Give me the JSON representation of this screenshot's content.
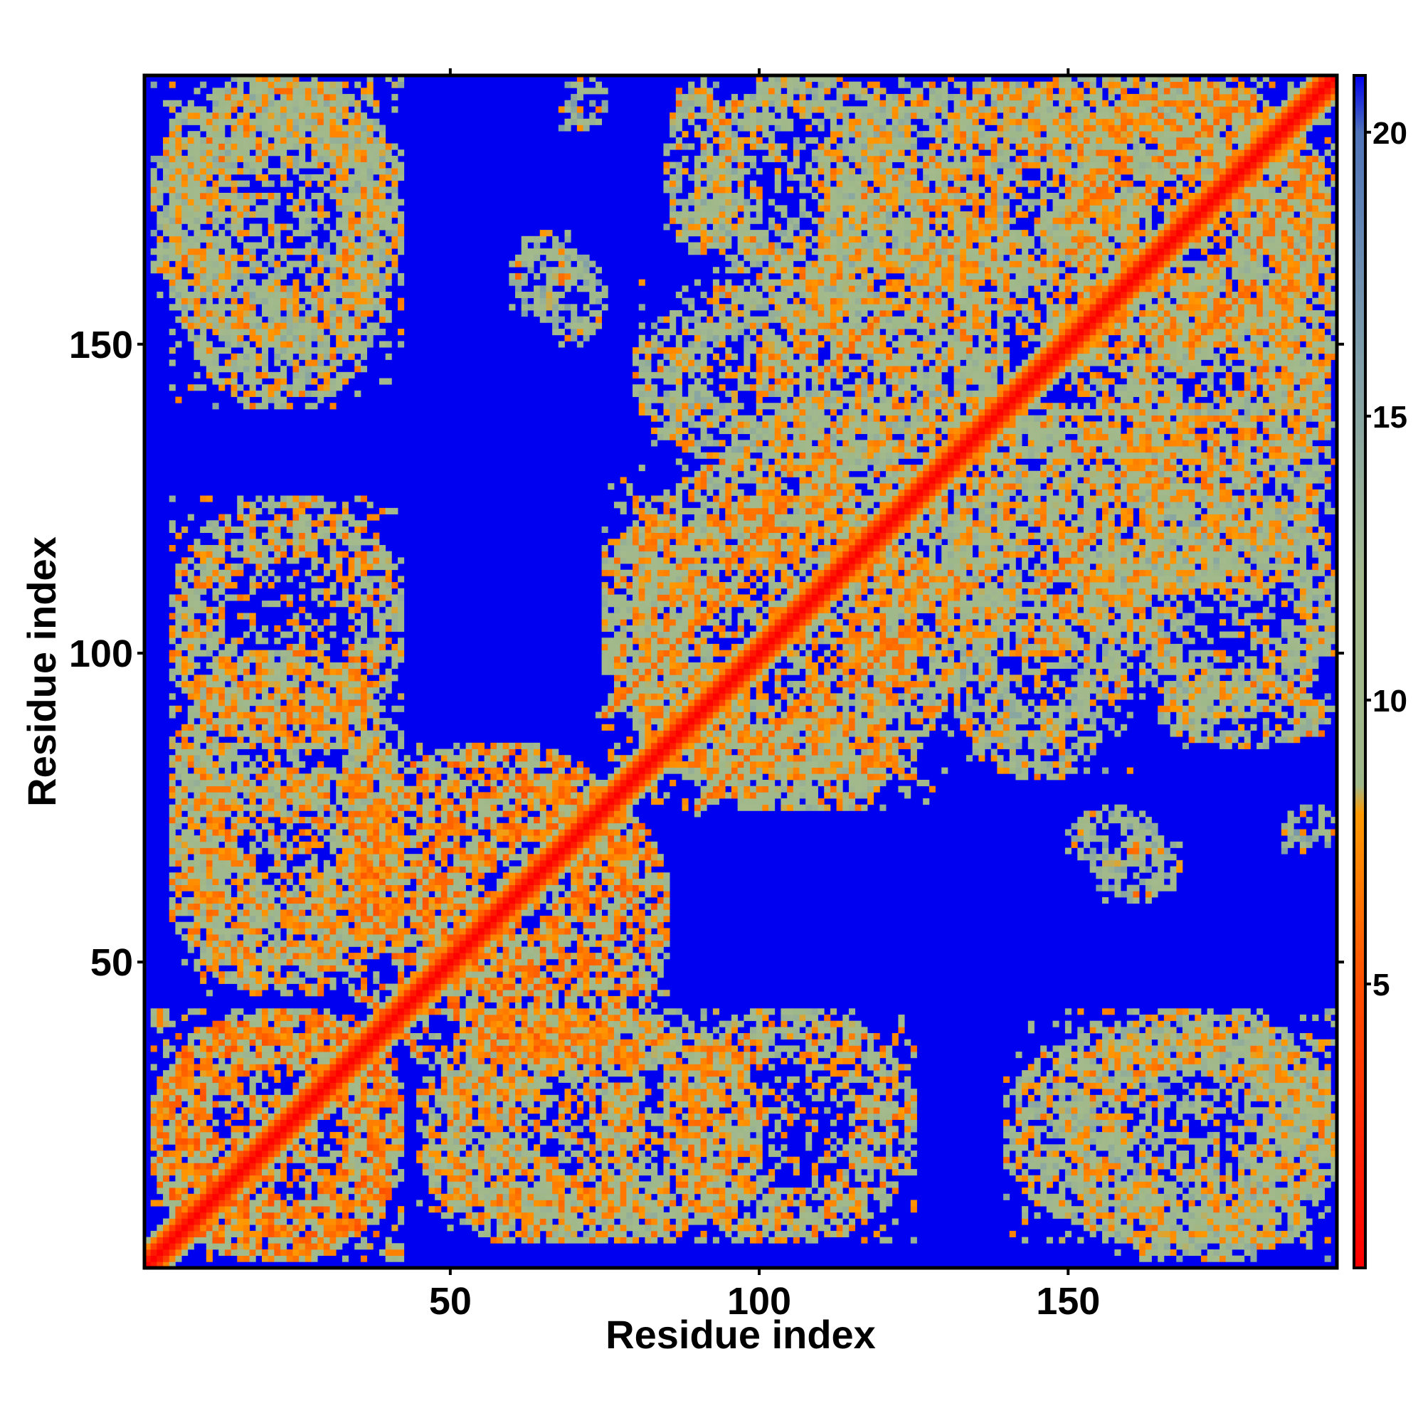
{
  "chart_data": {
    "type": "heatmap",
    "title": "",
    "xlabel": "Residue index",
    "ylabel": "Residue index",
    "n_residues": 193,
    "xlim": [
      1,
      193
    ],
    "ylim": [
      1,
      193
    ],
    "x_ticks": [
      50,
      100,
      150
    ],
    "y_ticks": [
      50,
      100,
      150
    ],
    "colorbar": {
      "ticks": [
        5,
        10,
        15,
        20
      ],
      "range": [
        0,
        21
      ],
      "stops": [
        {
          "value": 0,
          "color": "#ff0000"
        },
        {
          "value": 5,
          "color": "#ff5000"
        },
        {
          "value": 8,
          "color": "#ff9900"
        },
        {
          "value": 8.5,
          "color": "#9fb88a"
        },
        {
          "value": 12,
          "color": "#a4ba8c"
        },
        {
          "value": 16,
          "color": "#7f9ea9"
        },
        {
          "value": 20,
          "color": "#4f73b8"
        },
        {
          "value": 21,
          "color": "#0000f0"
        }
      ]
    },
    "colors": {
      "background": "#0000f0",
      "close": "#ff0000",
      "near": "#ff9900",
      "mid": "#9fb88a",
      "far": "#7f9ea9"
    },
    "diagonal": {
      "description_value": "distance ≈ 0 along i = j",
      "band_width": 4
    },
    "contact_blocks": [
      {
        "x": [
          2,
          42
        ],
        "y": [
          2,
          42
        ],
        "value": 9
      },
      {
        "x": [
          5,
          42
        ],
        "y": [
          45,
          82
        ],
        "value": 10
      },
      {
        "x": [
          5,
          42
        ],
        "y": [
          85,
          125
        ],
        "value": 10
      },
      {
        "x": [
          5,
          40
        ],
        "y": [
          140,
          192
        ],
        "value": 11
      },
      {
        "x": [
          35,
          80
        ],
        "y": [
          45,
          85
        ],
        "value": 9
      },
      {
        "x": [
          50,
          100
        ],
        "y": [
          5,
          42
        ],
        "value": 10
      },
      {
        "x": [
          60,
          70
        ],
        "y": [
          155,
          168
        ],
        "value": 12
      },
      {
        "x": [
          80,
          130
        ],
        "y": [
          75,
          125
        ],
        "value": 10
      },
      {
        "x": [
          80,
          130
        ],
        "y": [
          130,
          160
        ],
        "value": 11
      },
      {
        "x": [
          85,
          95
        ],
        "y": [
          165,
          192
        ],
        "value": 11
      },
      {
        "x": [
          110,
          160
        ],
        "y": [
          160,
          192
        ],
        "value": 11
      },
      {
        "x": [
          125,
          165
        ],
        "y": [
          100,
          140
        ],
        "value": 10
      },
      {
        "x": [
          150,
          193
        ],
        "y": [
          125,
          192
        ],
        "value": 10
      },
      {
        "x": [
          160,
          193
        ],
        "y": [
          90,
          125
        ],
        "value": 11
      },
      {
        "x": [
          150,
          165
        ],
        "y": [
          65,
          75
        ],
        "value": 12
      },
      {
        "x": [
          150,
          193
        ],
        "y": [
          2,
          42
        ],
        "value": 11
      },
      {
        "x": [
          185,
          193
        ],
        "y": [
          68,
          75
        ],
        "value": 13
      }
    ],
    "contact_bands": [
      {
        "from": [
          35,
          45
        ],
        "to": [
          42,
          40
        ],
        "value": 6
      },
      {
        "from": [
          3,
          40
        ],
        "to": [
          3,
          42
        ],
        "value": 7
      },
      {
        "from": [
          75,
          90
        ],
        "to": [
          95,
          110
        ],
        "value": 6
      },
      {
        "from": [
          115,
          95
        ],
        "to": [
          125,
          105
        ],
        "value": 6
      },
      {
        "from": [
          145,
          110
        ],
        "to": [
          155,
          120
        ],
        "value": 6
      },
      {
        "from": [
          150,
          170
        ],
        "to": [
          160,
          180
        ],
        "value": 6
      },
      {
        "from": [
          165,
          180
        ],
        "to": [
          180,
          190
        ],
        "value": 6
      }
    ]
  }
}
